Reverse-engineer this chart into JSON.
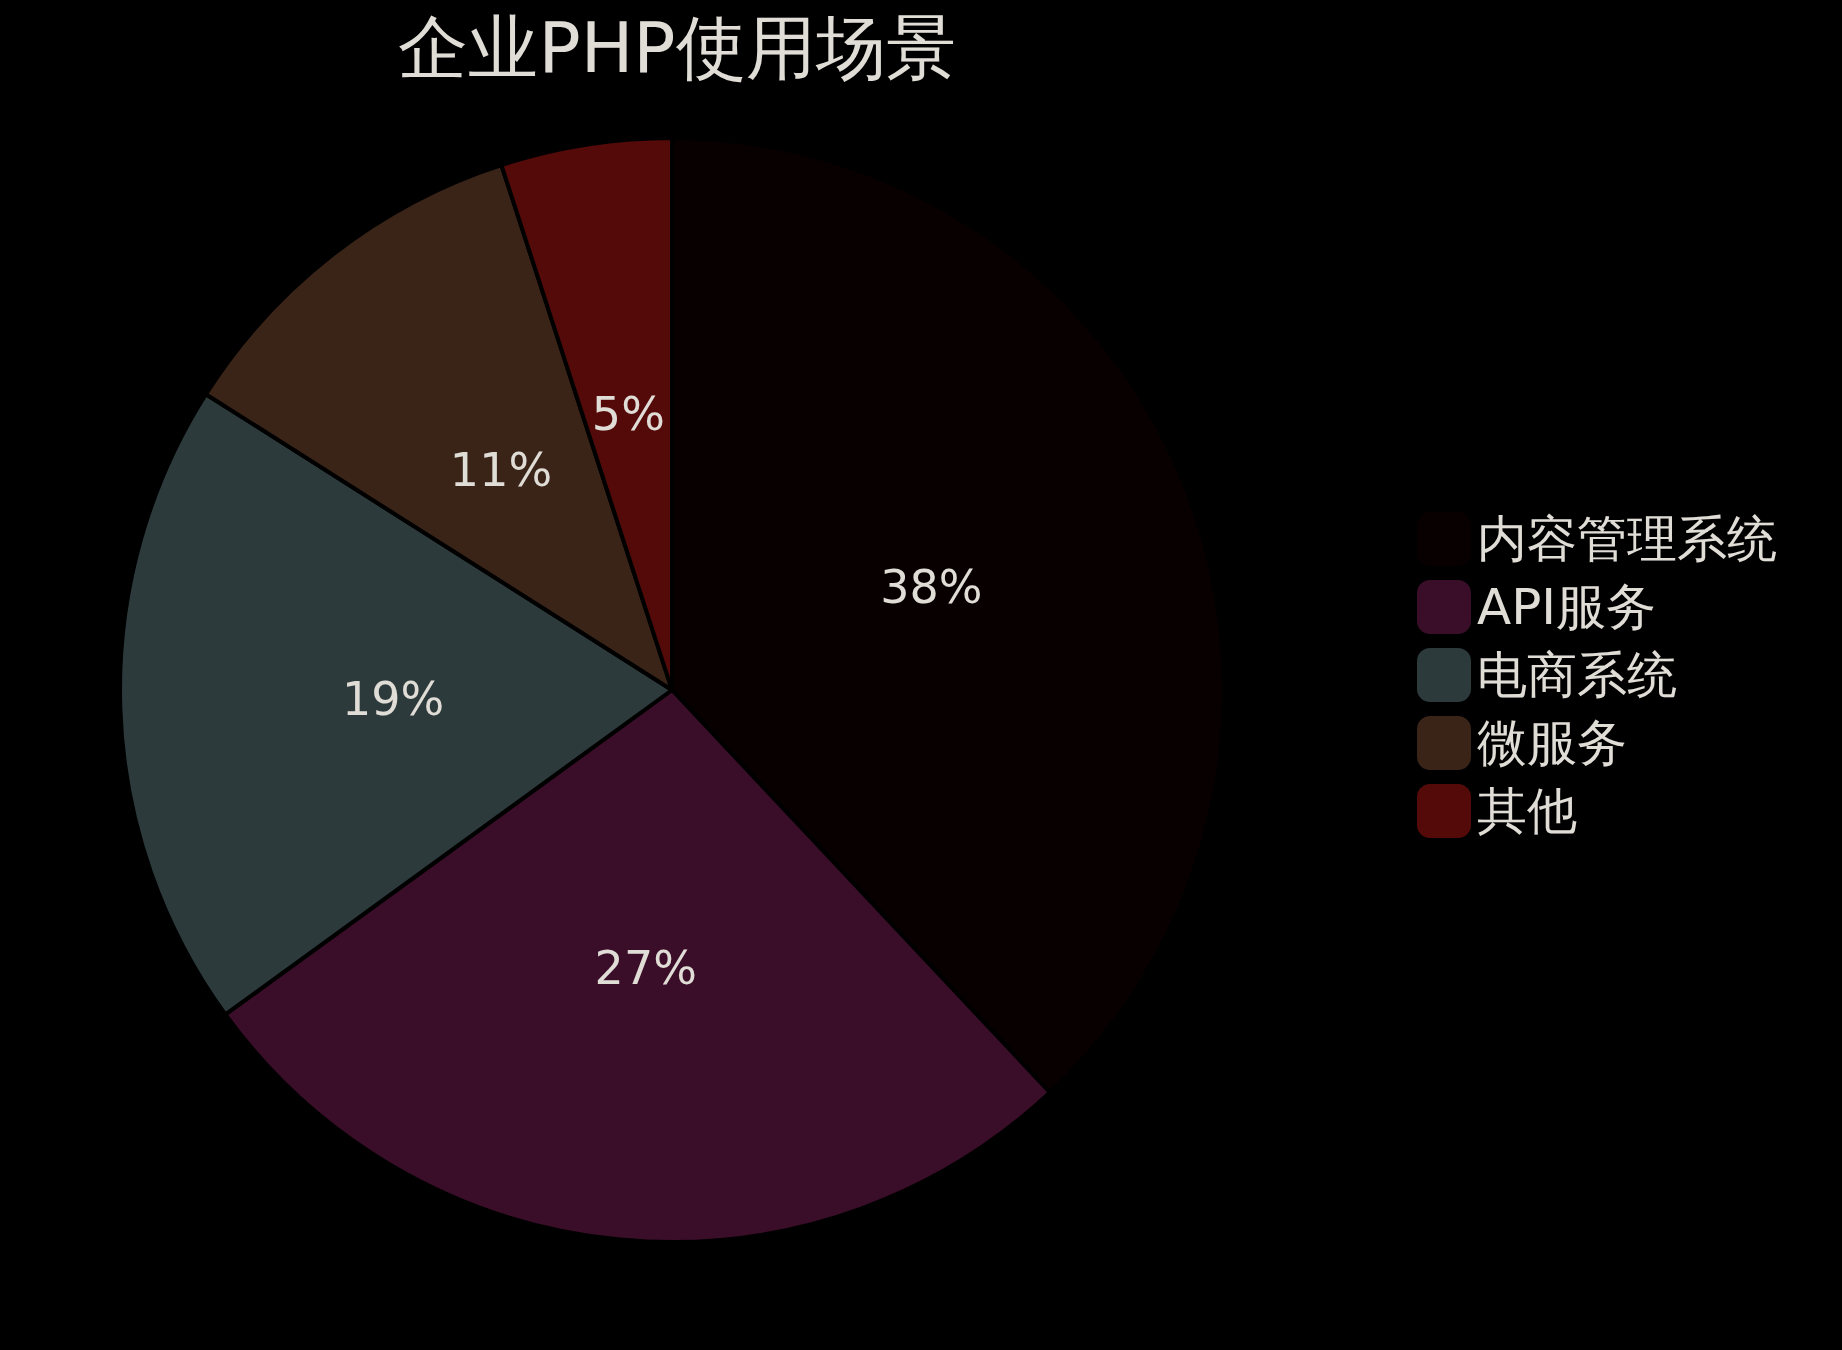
{
  "chart_data": {
    "type": "pie",
    "title": "企业PHP使用场景",
    "categories": [
      "内容管理系统",
      "API服务",
      "电商系统",
      "微服务",
      "其他"
    ],
    "values": [
      38,
      27,
      19,
      11,
      5
    ],
    "colors": [
      "#080000",
      "#3a0d28",
      "#2c3a3c",
      "#3a2418",
      "#550a0a"
    ],
    "value_labels": [
      "38%",
      "27%",
      "19%",
      "11%",
      "5%"
    ],
    "legend": "right"
  }
}
